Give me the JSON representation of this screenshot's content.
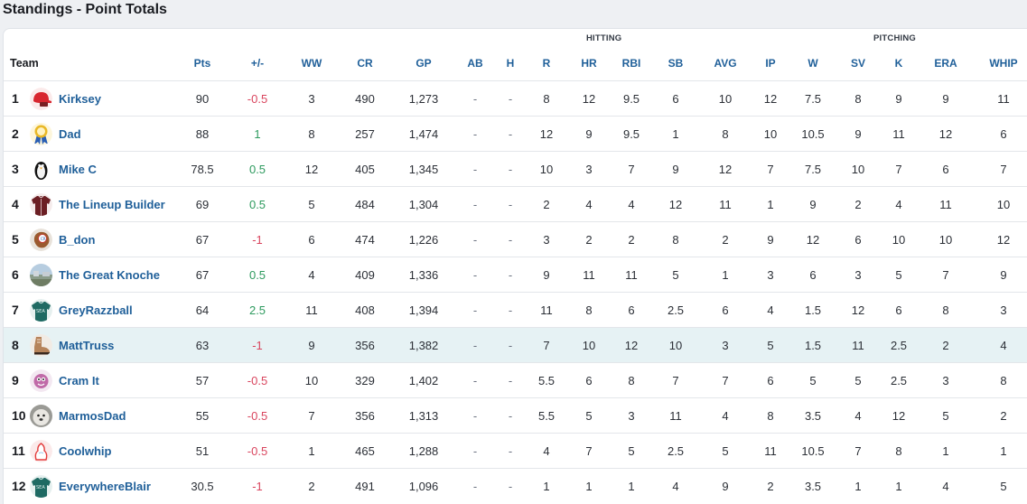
{
  "title": "Standings - Point Totals",
  "groups": {
    "hitting": "HITTING",
    "pitching": "PITCHING"
  },
  "columns": [
    "Team",
    "Pts",
    "+/-",
    "WW",
    "CR",
    "GP",
    "AB",
    "H",
    "R",
    "HR",
    "RBI",
    "SB",
    "AVG",
    "IP",
    "W",
    "SV",
    "K",
    "ERA",
    "WHIP"
  ],
  "colors": {
    "link": "#1f5f99",
    "positive": "#2d9a5e",
    "negative": "#d9455e",
    "highlight": "#e6f2f4"
  },
  "highlighted_rank": "8",
  "rows": [
    {
      "rank": "1",
      "team": "Kirksey",
      "avatar": "red-helmet-icon",
      "pm_sign": "neg",
      "v": [
        "90",
        "-0.5",
        "3",
        "490",
        "1,273",
        "-",
        "-",
        "8",
        "12",
        "9.5",
        "6",
        "10",
        "12",
        "7.5",
        "8",
        "9",
        "9",
        "11"
      ]
    },
    {
      "rank": "2",
      "team": "Dad",
      "avatar": "award-ribbon-icon",
      "pm_sign": "pos",
      "v": [
        "88",
        "1",
        "8",
        "257",
        "1,474",
        "-",
        "-",
        "12",
        "9",
        "9.5",
        "1",
        "8",
        "10",
        "10.5",
        "9",
        "11",
        "12",
        "6"
      ]
    },
    {
      "rank": "3",
      "team": "Mike C",
      "avatar": "penguin-icon",
      "pm_sign": "pos",
      "v": [
        "78.5",
        "0.5",
        "12",
        "405",
        "1,345",
        "-",
        "-",
        "10",
        "3",
        "7",
        "9",
        "12",
        "7",
        "7.5",
        "10",
        "7",
        "6",
        "7"
      ]
    },
    {
      "rank": "4",
      "team": "The Lineup Builder",
      "avatar": "maroon-jersey-icon",
      "pm_sign": "pos",
      "v": [
        "69",
        "0.5",
        "5",
        "484",
        "1,304",
        "-",
        "-",
        "2",
        "4",
        "4",
        "12",
        "11",
        "1",
        "9",
        "2",
        "4",
        "11",
        "10"
      ]
    },
    {
      "rank": "5",
      "team": "B_don",
      "avatar": "baseball-glove-icon",
      "pm_sign": "neg",
      "v": [
        "67",
        "-1",
        "6",
        "474",
        "1,226",
        "-",
        "-",
        "3",
        "2",
        "2",
        "8",
        "2",
        "9",
        "12",
        "6",
        "10",
        "10",
        "12"
      ]
    },
    {
      "rank": "6",
      "team": "The Great Knoche",
      "avatar": "photo-avatar-icon",
      "pm_sign": "pos",
      "v": [
        "67",
        "0.5",
        "4",
        "409",
        "1,336",
        "-",
        "-",
        "9",
        "11",
        "11",
        "5",
        "1",
        "3",
        "6",
        "3",
        "5",
        "7",
        "9"
      ]
    },
    {
      "rank": "7",
      "team": "GreyRazzball",
      "avatar": "teal-jersey-icon",
      "pm_sign": "pos",
      "v": [
        "64",
        "2.5",
        "11",
        "408",
        "1,394",
        "-",
        "-",
        "11",
        "8",
        "6",
        "2.5",
        "6",
        "4",
        "1.5",
        "12",
        "6",
        "8",
        "3"
      ]
    },
    {
      "rank": "8",
      "team": "MattTruss",
      "avatar": "cleat-icon",
      "pm_sign": "neg",
      "v": [
        "63",
        "-1",
        "9",
        "356",
        "1,382",
        "-",
        "-",
        "7",
        "10",
        "12",
        "10",
        "3",
        "5",
        "1.5",
        "11",
        "2.5",
        "2",
        "4"
      ]
    },
    {
      "rank": "9",
      "team": "Cram It",
      "avatar": "cartoon-face-icon",
      "pm_sign": "neg",
      "v": [
        "57",
        "-0.5",
        "10",
        "329",
        "1,402",
        "-",
        "-",
        "5.5",
        "6",
        "8",
        "7",
        "7",
        "6",
        "5",
        "5",
        "2.5",
        "3",
        "8"
      ]
    },
    {
      "rank": "10",
      "team": "MarmosDad",
      "avatar": "dog-photo-icon",
      "pm_sign": "neg",
      "v": [
        "55",
        "-0.5",
        "7",
        "356",
        "1,313",
        "-",
        "-",
        "5.5",
        "5",
        "3",
        "11",
        "4",
        "8",
        "3.5",
        "4",
        "12",
        "5",
        "2"
      ]
    },
    {
      "rank": "11",
      "team": "Coolwhip",
      "avatar": "whipped-cream-icon",
      "pm_sign": "neg",
      "v": [
        "51",
        "-0.5",
        "1",
        "465",
        "1,288",
        "-",
        "-",
        "4",
        "7",
        "5",
        "2.5",
        "5",
        "11",
        "10.5",
        "7",
        "8",
        "1",
        "1"
      ]
    },
    {
      "rank": "12",
      "team": "EverywhereBlair",
      "avatar": "teal-jersey-icon",
      "pm_sign": "neg",
      "v": [
        "30.5",
        "-1",
        "2",
        "491",
        "1,096",
        "-",
        "-",
        "1",
        "1",
        "1",
        "4",
        "9",
        "2",
        "3.5",
        "1",
        "1",
        "4",
        "5"
      ]
    }
  ]
}
